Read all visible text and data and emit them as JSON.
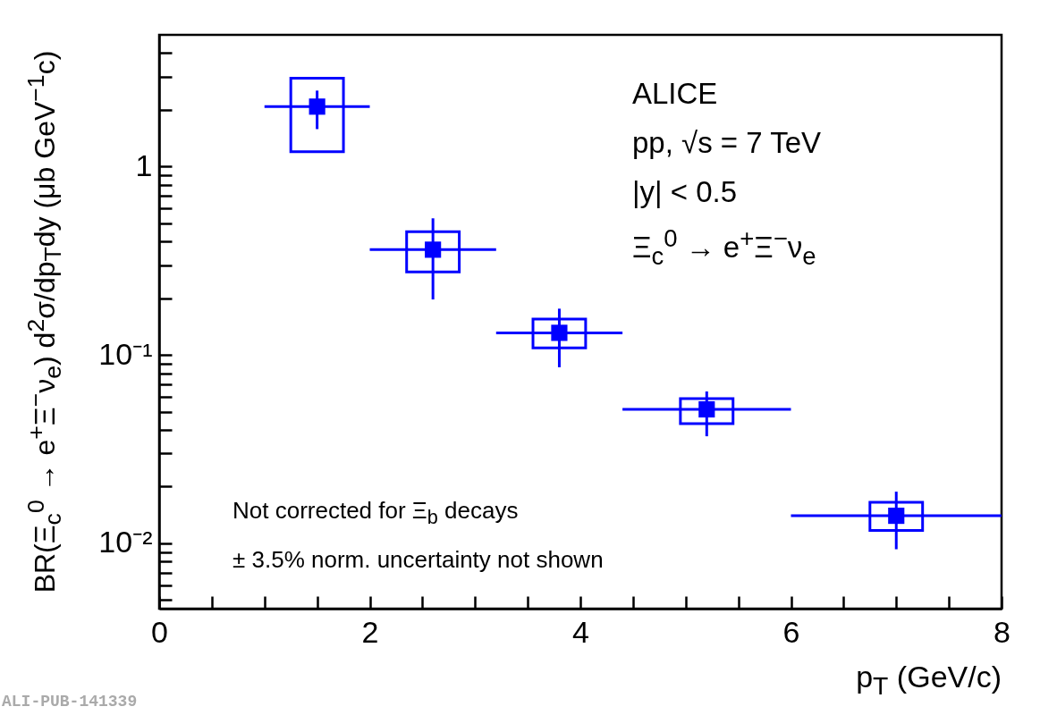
{
  "chart_data": {
    "type": "scatter",
    "xlabel": "p$_{T}$ (GeV/c)",
    "ylabel": "BR(Ξ$_{c}$$^{0}$ → e$^{+}$Ξ$^{−}$ν$_{e}$) d$^{2}$σ/dp$_{T}$dy (μb GeV$^{−1}$c)",
    "annotations": [
      "ALICE",
      "pp, √s = 7 TeV",
      "|y| < 0.5",
      "Ξ$_{c}$$^{0}$ → e$^{+}$Ξ$^{−}$ν$_{e}$",
      "Not corrected for Ξ$_{b}$ decays",
      "± 3.5% norm. uncertainty not shown",
      "ALI-PUB-141339"
    ],
    "log": "y",
    "xlim": [
      0,
      8
    ],
    "ylim": [
      0.0045,
      5
    ],
    "xticks": [
      0,
      {
        "value": 0.5,
        "label": null
      },
      {
        "value": 1,
        "label": null
      },
      {
        "value": 1.5,
        "label": null
      },
      2,
      {
        "value": 2.5,
        "label": null
      },
      {
        "value": 3,
        "label": null
      },
      {
        "value": 3.5,
        "label": null
      },
      4,
      {
        "value": 4.5,
        "label": null
      },
      {
        "value": 5,
        "label": null
      },
      {
        "value": 5.5,
        "label": null
      },
      6,
      {
        "value": 6.5,
        "label": null
      },
      {
        "value": 7,
        "label": null
      },
      {
        "value": 7.5,
        "label": null
      },
      8
    ],
    "yticks": [
      {
        "value": 0.005,
        "label": null
      },
      {
        "value": 0.006,
        "label": null
      },
      {
        "value": 0.007,
        "label": null
      },
      {
        "value": 0.008,
        "label": null
      },
      {
        "value": 0.009,
        "label": null
      },
      {
        "value": 0.01,
        "label": "10⁻²"
      },
      {
        "value": 0.02,
        "label": null
      },
      {
        "value": 0.03,
        "label": null
      },
      {
        "value": 0.04,
        "label": null
      },
      {
        "value": 0.05,
        "label": null
      },
      {
        "value": 0.06,
        "label": null
      },
      {
        "value": 0.07,
        "label": null
      },
      {
        "value": 0.08,
        "label": null
      },
      {
        "value": 0.09,
        "label": null
      },
      {
        "value": 0.1,
        "label": "10⁻¹"
      },
      {
        "value": 0.2,
        "label": null
      },
      {
        "value": 0.3,
        "label": null
      },
      {
        "value": 0.4,
        "label": null
      },
      {
        "value": 0.5,
        "label": null
      },
      {
        "value": 0.6,
        "label": null
      },
      {
        "value": 0.7,
        "label": null
      },
      {
        "value": 0.8,
        "label": null
      },
      {
        "value": 0.9,
        "label": null
      },
      1,
      {
        "value": 2,
        "label": null
      },
      {
        "value": 3,
        "label": null
      },
      {
        "value": 4,
        "label": null
      }
    ],
    "series": [
      {
        "type": "bar",
        "color": "#0000ff",
        "x": [
          1.5,
          2.6,
          3.8,
          5.2,
          7
        ],
        "base": [
          1.2,
          0.276,
          0.109,
          0.0432,
          0.0117
        ],
        "values": [
          1.74,
          0.175,
          0.046,
          0.0154,
          0.0048
        ]
      },
      {
        "color": "#0000ff",
        "marker": "square",
        "x": [
          1.5,
          2.6,
          3.8,
          5.2,
          7
        ],
        "values": [
          2.08,
          0.362,
          0.131,
          0.0514,
          0.014
        ],
        "errors": [
          [
            1.58,
            2.53
          ],
          [
            0.197,
            0.531
          ],
          [
            0.086,
            0.176
          ],
          [
            0.037,
            0.064
          ],
          [
            0.0093,
            0.0188
          ]
        ],
        "xerrors": [
          [
            1,
            2
          ],
          [
            2,
            3.2
          ],
          [
            3.2,
            4.4
          ],
          [
            4.4,
            6
          ],
          [
            6,
            8
          ]
        ]
      }
    ]
  }
}
